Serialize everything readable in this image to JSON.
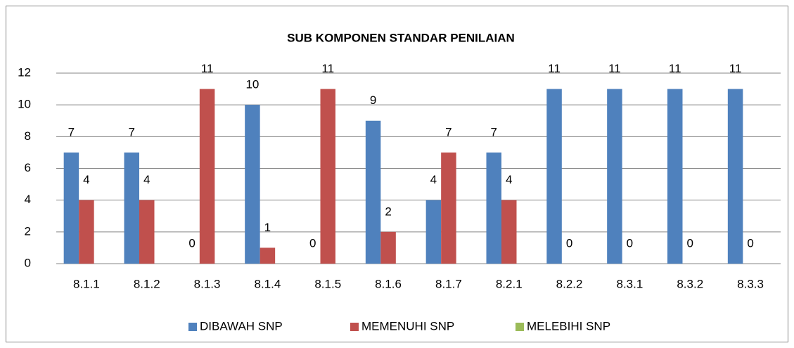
{
  "chart_data": {
    "type": "bar",
    "title": "SUB KOMPONEN STANDAR PENILAIAN",
    "categories": [
      "8.1.1",
      "8.1.2",
      "8.1.3",
      "8.1.4",
      "8.1.5",
      "8.1.6",
      "8.1.7",
      "8.2.1",
      "8.2.2",
      "8.3.1",
      "8.3.2",
      "8.3.3"
    ],
    "series": [
      {
        "name": "DIBAWAH SNP",
        "color": "#4f81bd",
        "values": [
          7,
          7,
          0,
          10,
          0,
          9,
          4,
          7,
          11,
          11,
          11,
          11
        ]
      },
      {
        "name": "MEMENUHI SNP",
        "color": "#c0504d",
        "values": [
          4,
          4,
          11,
          1,
          11,
          2,
          7,
          4,
          0,
          0,
          0,
          0
        ]
      },
      {
        "name": "MELEBIHI SNP",
        "color": "#9bbb59"
      }
    ],
    "ylim": [
      0,
      12
    ],
    "yticks": [
      0,
      2,
      4,
      6,
      8,
      10,
      12
    ],
    "grid": true,
    "legend": "bottom"
  }
}
